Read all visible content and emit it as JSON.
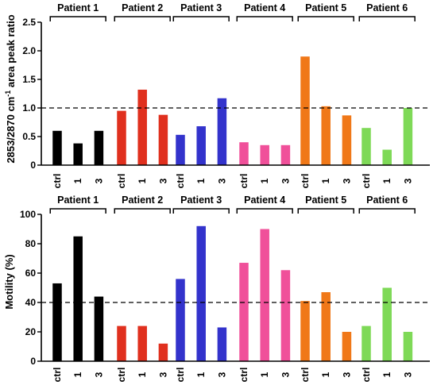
{
  "chart_data": [
    {
      "type": "bar",
      "ylabel": "2853/2870 cm",
      "ylabel_sup": "-1",
      "ylabel_suffix": " area peak ratio",
      "ylim": [
        0,
        2.5
      ],
      "yticks": [
        "0",
        "0.5",
        "1.0",
        "1.5",
        "2.0",
        "2.5"
      ],
      "reference_line": 1.0,
      "groups": [
        {
          "name": "Patient 1",
          "color": "#000000",
          "categories": [
            "ctrl",
            "1",
            "3"
          ],
          "values": [
            0.6,
            0.38,
            0.6
          ]
        },
        {
          "name": "Patient 2",
          "color": "#e0301e",
          "categories": [
            "ctrl",
            "1",
            "3"
          ],
          "values": [
            0.95,
            1.32,
            0.88
          ]
        },
        {
          "name": "Patient 3",
          "color": "#3333cc",
          "categories": [
            "ctrl",
            "1",
            "3"
          ],
          "values": [
            0.53,
            0.68,
            1.17
          ]
        },
        {
          "name": "Patient 4",
          "color": "#f0509a",
          "categories": [
            "ctrl",
            "1",
            "3"
          ],
          "values": [
            0.4,
            0.35,
            0.35
          ]
        },
        {
          "name": "Patient 5",
          "color": "#f07818",
          "categories": [
            "ctrl",
            "1",
            "3"
          ],
          "values": [
            1.9,
            1.03,
            0.87
          ]
        },
        {
          "name": "Patient 6",
          "color": "#7ed957",
          "categories": [
            "ctrl",
            "1",
            "3"
          ],
          "values": [
            0.65,
            0.27,
            1.0
          ]
        }
      ]
    },
    {
      "type": "bar",
      "ylabel": "Motility (%)",
      "ylim": [
        0,
        100
      ],
      "yticks": [
        "0",
        "20",
        "40",
        "60",
        "80",
        "100"
      ],
      "reference_line": 40,
      "groups": [
        {
          "name": "Patient 1",
          "color": "#000000",
          "categories": [
            "ctrl",
            "1",
            "3"
          ],
          "values": [
            53,
            85,
            44
          ]
        },
        {
          "name": "Patient 2",
          "color": "#e0301e",
          "categories": [
            "ctrl",
            "1",
            "3"
          ],
          "values": [
            24,
            24,
            12
          ]
        },
        {
          "name": "Patient 3",
          "color": "#3333cc",
          "categories": [
            "ctrl",
            "1",
            "3"
          ],
          "values": [
            56,
            92,
            23
          ]
        },
        {
          "name": "Patient 4",
          "color": "#f0509a",
          "categories": [
            "ctrl",
            "1",
            "3"
          ],
          "values": [
            67,
            90,
            62
          ]
        },
        {
          "name": "Patient 5",
          "color": "#f07818",
          "categories": [
            "ctrl",
            "1",
            "3"
          ],
          "values": [
            41,
            47,
            20
          ]
        },
        {
          "name": "Patient 6",
          "color": "#7ed957",
          "categories": [
            "ctrl",
            "1",
            "3"
          ],
          "values": [
            24,
            50,
            20
          ]
        }
      ]
    }
  ]
}
